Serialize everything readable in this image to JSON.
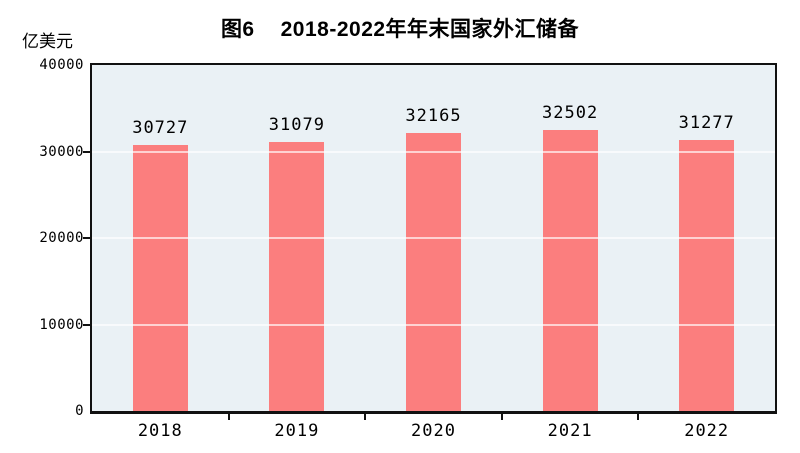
{
  "title": {
    "prefix": "图6",
    "text": "2018-2022年年末国家外汇储备"
  },
  "y_unit_label": "亿美元",
  "chart_data": {
    "type": "bar",
    "title": "图6 2018-2022年年末国家外汇储备",
    "categories": [
      "2018",
      "2019",
      "2020",
      "2021",
      "2022"
    ],
    "values": [
      30727,
      31079,
      32165,
      32502,
      31277
    ],
    "xlabel": "",
    "ylabel": "亿美元",
    "ylim": [
      0,
      40000
    ],
    "yticks": [
      0,
      10000,
      20000,
      30000,
      40000
    ],
    "grid": true,
    "legend_position": "none",
    "data_labels_shown": true,
    "bar_color": "#FB7E7E",
    "plot_bg_color": "#EAF1F5",
    "axis_color": "#111111",
    "text_color": "#000000"
  }
}
